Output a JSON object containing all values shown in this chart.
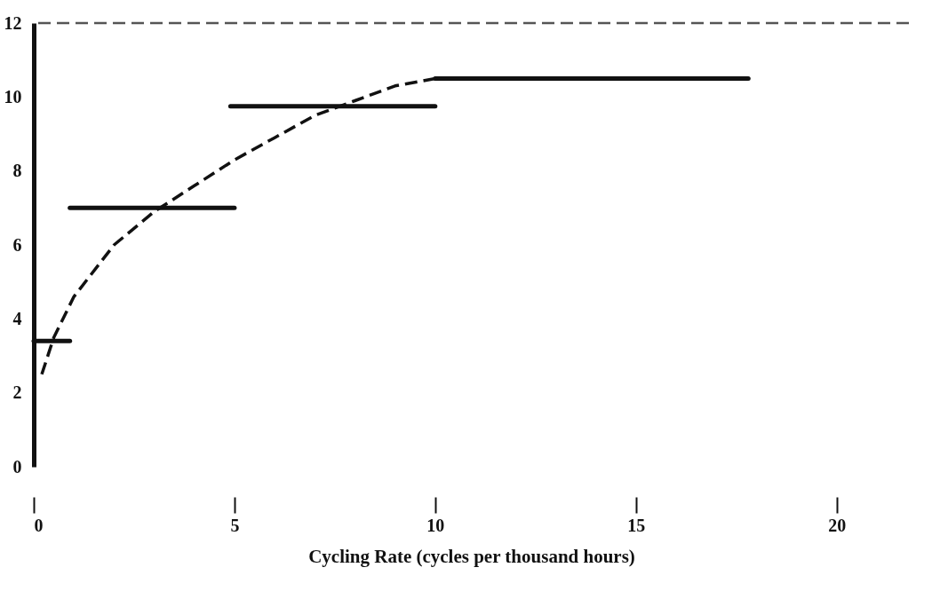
{
  "chart_data": {
    "type": "line",
    "xlabel": "Cycling Rate (cycles per thousand hours)",
    "xlim": [
      0,
      21.8
    ],
    "xticks": [
      0,
      5,
      10,
      15,
      20
    ],
    "ylim": [
      0,
      12
    ],
    "yticks": [
      0,
      2,
      4,
      6,
      8,
      10,
      12
    ],
    "grid": false,
    "marker": "none",
    "series": [
      {
        "color": "#111111",
        "x": [
          0,
          0.9
        ],
        "values": [
          3.4,
          3.4
        ],
        "line_style": "solid"
      },
      {
        "color": "#111111",
        "x": [
          0.9,
          5
        ],
        "values": [
          7,
          7
        ],
        "line_style": "solid"
      },
      {
        "color": "#111111",
        "x": [
          4.9,
          10
        ],
        "values": [
          9.75,
          9.75
        ],
        "line_style": "solid"
      },
      {
        "color": "#111111",
        "x": [
          10,
          17.8
        ],
        "values": [
          10.5,
          10.5
        ],
        "line_style": "solid"
      },
      {
        "color": "#111111",
        "x": [
          0.2,
          0.5,
          1,
          2,
          3,
          4,
          5,
          6,
          7,
          8,
          9,
          10
        ],
        "values": [
          2.5,
          3.5,
          4.6,
          6,
          6.9,
          7.6,
          8.3,
          8.9,
          9.5,
          9.9,
          10.3,
          10.5
        ],
        "line_style": "dashed"
      }
    ],
    "ref_lines": [
      {
        "axis": "y",
        "value": 12,
        "color": "#555555",
        "line_style": "dashed"
      }
    ]
  }
}
